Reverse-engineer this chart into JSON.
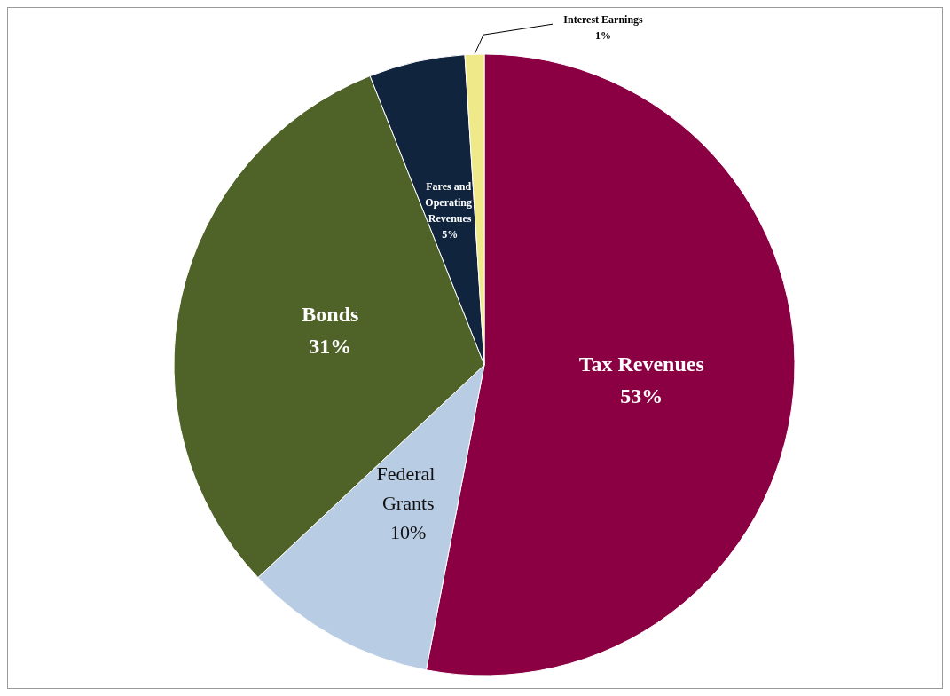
{
  "chart_data": {
    "type": "pie",
    "categories": [
      "Tax Revenues",
      "Federal Grants",
      "Bonds",
      "Fares and Operating Revenues",
      "Interest Earnings"
    ],
    "values": [
      53,
      10,
      31,
      5,
      1
    ],
    "value_labels": [
      "53%",
      "10%",
      "31%",
      "5%",
      "1%"
    ],
    "colors": [
      "#8b0042",
      "#b8cce4",
      "#4f6228",
      "#10243e",
      "#efe98a"
    ],
    "legend": false
  }
}
